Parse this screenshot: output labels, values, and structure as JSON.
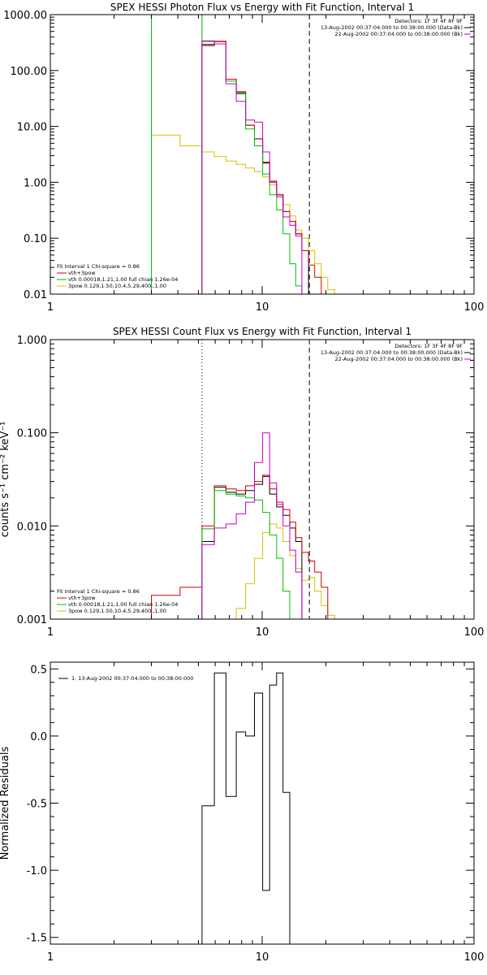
{
  "chart_data": [
    {
      "type": "line",
      "title": "SPEX HESSI Photon Flux vs Energy with Fit Function, Interval 1",
      "xscale": "log",
      "yscale": "log",
      "xlim": [
        1,
        100
      ],
      "ylim": [
        0.01,
        1000
      ],
      "xticks": [
        "1",
        "10",
        "100"
      ],
      "yticks": [
        "0.01",
        "0.10",
        "1.00",
        "10.00",
        "100.00",
        "1000.00"
      ],
      "vlines": [
        {
          "x": 5.2,
          "style": "magenta-dotted"
        },
        {
          "x": 16.7,
          "style": "dashed"
        }
      ],
      "info_right": [
        "Detectors: 1F 3F 4F 8F 9F",
        "13-Aug-2002 00:37:04.000 to 00:38:00.000 (Data-Bk)",
        "22-Aug-2002 00:37:04.000 to 00:38:00.000 (Bk)"
      ],
      "legend": {
        "placement": "bottom-left",
        "header": "Fit Interval 1    Chi-square = 0.86",
        "items": [
          {
            "label": "vth+3pow",
            "color": "#d40000"
          },
          {
            "label": "vth 0.00018,1.21,1.00   full chian 1.26e-04",
            "color": "#00c000"
          },
          {
            "label": "3pow 0.129,1.50,10.4,5.29,400.,1.00",
            "color": "#d8c000"
          }
        ]
      },
      "edges": [
        5.2,
        5.95,
        6.75,
        7.55,
        8.35,
        9.2,
        10.05,
        10.85,
        11.7,
        12.55,
        13.5,
        14.4,
        15.4,
        16.55,
        17.7,
        19.0,
        20.4,
        22.0
      ],
      "series": [
        {
          "color": "#000000",
          "values": [
            280,
            330,
            70,
            40,
            10.5,
            6,
            2.2,
            1.0,
            0.6,
            0.3,
            0.2,
            0.12,
            0.06,
            null,
            null,
            null,
            null
          ]
        },
        {
          "color": "#d40000",
          "values": [
            295,
            335,
            70,
            42,
            10.5,
            6,
            2.3,
            1.05,
            0.6,
            0.3,
            0.2,
            0.12,
            0.06,
            0.033,
            0.02,
            null,
            null
          ]
        },
        {
          "color": "#00c000",
          "values": [
            330,
            300,
            65,
            38,
            9,
            4.5,
            1.4,
            0.6,
            0.32,
            0.12,
            0.035,
            0.014,
            null,
            null,
            null,
            null,
            null
          ]
        },
        {
          "color": "#c800c8",
          "values": [
            340,
            300,
            58,
            28,
            13,
            12,
            3.5,
            1.0,
            0.55,
            0.24,
            0.17,
            0.11,
            null,
            null,
            null,
            null,
            null
          ]
        }
      ],
      "green_left": {
        "edges": [
          3.0,
          4.1,
          5.2
        ],
        "values": [
          1000,
          1000
        ]
      },
      "yellow": {
        "edges": [
          3.0,
          4.1,
          5.2,
          5.95,
          6.75,
          7.55,
          8.35,
          9.2,
          10.05,
          10.85,
          11.7,
          12.55,
          13.5,
          14.4,
          15.4,
          16.55,
          17.7,
          19.0,
          20.4,
          22.0,
          23.5
        ],
        "values": [
          7.0,
          4.5,
          3.5,
          2.9,
          2.4,
          2.1,
          1.8,
          1.55,
          1.25,
          0.9,
          0.6,
          0.4,
          0.25,
          0.14,
          0.1,
          0.06,
          0.035,
          0.02,
          0.012,
          0.01
        ]
      }
    },
    {
      "type": "line",
      "title": "SPEX HESSI Count Flux vs Energy with Fit Function, Interval 1",
      "ylabel": "counts s⁻¹ cm⁻² keV⁻¹",
      "xscale": "log",
      "yscale": "log",
      "xlim": [
        1,
        100
      ],
      "ylim": [
        0.001,
        1
      ],
      "xticks": [
        "1",
        "10",
        "100"
      ],
      "yticks": [
        "0.001",
        "0.010",
        "0.100",
        "1.000"
      ],
      "vlines": [
        {
          "x": 5.2,
          "style": "dotted"
        },
        {
          "x": 16.7,
          "style": "dashed"
        }
      ],
      "info_right": [
        "Detectors: 1F 3F 4F 8F 9F",
        "13-Aug-2002 00:37:04.000 to 00:38:00.000 (Data-Bk)",
        "22-Aug-2002 00:37:04.000 to 00:38:00.000 (Bk)"
      ],
      "legend": {
        "placement": "bottom-left",
        "header": "Fit Interval 1    Chi-square = 0.86",
        "items": [
          {
            "label": "vth+3pow",
            "color": "#d40000"
          },
          {
            "label": "vth 0.00018,1.21,1.00   full chian 1.26e-04",
            "color": "#00c000"
          },
          {
            "label": "3pow 0.129,1.50,10.4,5.29,400.,1.00",
            "color": "#d8c000"
          }
        ]
      },
      "edges": [
        5.2,
        5.95,
        6.75,
        7.55,
        8.35,
        9.2,
        10.05,
        10.85,
        11.7,
        12.55,
        13.5,
        14.4,
        15.4,
        16.55,
        17.7,
        19.0,
        20.4
      ],
      "series": [
        {
          "color": "#000000",
          "values": [
            0.0068,
            0.026,
            0.023,
            0.022,
            0.024,
            0.028,
            0.034,
            0.022,
            0.016,
            0.013,
            0.0095,
            0.0068,
            null,
            null,
            null,
            null
          ]
        },
        {
          "color": "#d40000",
          "values": [
            0.01,
            0.027,
            0.025,
            0.024,
            0.027,
            0.03,
            0.035,
            0.025,
            0.018,
            0.015,
            0.011,
            0.0075,
            0.0052,
            0.0042,
            0.0032,
            0.0022
          ]
        },
        {
          "color": "#00c000",
          "values": [
            0.0093,
            0.024,
            0.022,
            0.021,
            0.02,
            0.019,
            0.014,
            0.008,
            0.0045,
            0.002,
            0.001,
            null,
            null,
            null,
            null,
            null
          ]
        },
        {
          "color": "#c800c8",
          "values": [
            0.0063,
            0.0095,
            0.0105,
            0.0135,
            0.018,
            0.048,
            0.1,
            0.029,
            0.017,
            0.01,
            0.0055,
            0.0032,
            null,
            null,
            null,
            null
          ]
        }
      ],
      "red_left": {
        "edges": [
          3.0,
          4.1,
          5.2
        ],
        "values": [
          0.0018,
          0.0022
        ]
      },
      "yellow": {
        "edges": [
          7.55,
          8.35,
          9.2,
          10.05,
          10.85,
          11.7,
          12.55,
          13.5,
          14.4,
          15.4,
          16.55,
          17.7,
          19.0,
          20.4,
          22.0,
          23.5
        ],
        "values": [
          0.0013,
          0.0024,
          0.0045,
          0.0085,
          0.0105,
          0.0095,
          0.0068,
          0.0048,
          0.0035,
          0.0026,
          0.0028,
          0.002,
          0.0014,
          0.0011,
          0.001
        ]
      }
    },
    {
      "type": "line",
      "title": "",
      "ylabel": "Normalized Residuals",
      "xscale": "log",
      "yscale": "linear",
      "xlim": [
        1,
        100
      ],
      "ylim": [
        -1.55,
        0.55
      ],
      "xticks": [
        "1",
        "10",
        "100"
      ],
      "yticks": [
        "0.5",
        "0.0",
        "-0.5",
        "-1.0",
        "-1.5"
      ],
      "ytick_values": [
        0.5,
        0.0,
        -0.5,
        -1.0,
        -1.5
      ],
      "legend": {
        "placement": "top-left",
        "items": [
          {
            "label": "1. 13-Aug-2002 00:37:04.000 to 00:38:00.000",
            "color": "#000000"
          }
        ]
      },
      "edges": [
        5.2,
        5.95,
        6.75,
        7.55,
        8.35,
        9.2,
        10.05,
        10.85,
        11.7,
        12.55,
        13.5,
        14.4,
        15.4,
        16.55
      ],
      "series": [
        {
          "color": "#000000",
          "values": [
            -0.52,
            0.47,
            -0.45,
            0.03,
            0.0,
            0.32,
            -1.15,
            0.38,
            0.47,
            -0.42
          ]
        }
      ]
    }
  ]
}
